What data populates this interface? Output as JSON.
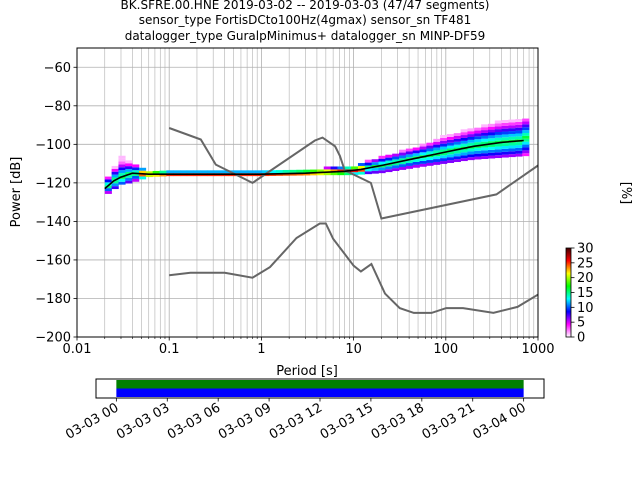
{
  "title": {
    "line1": "BK.SFRE.00.HNE   2019-03-02 -- 2019-03-03  (47/47 segments)",
    "line2": "sensor_type FortisDCto100Hz(4gmax) sensor_sn TF481",
    "line3": "datalogger_type GuralpMinimus+ datalogger_sn MINP-DF59"
  },
  "chart_data": [
    {
      "type": "heatmap",
      "xlabel": "Period [s]",
      "ylabel": "Power [dB]",
      "xscale": "log",
      "xlim": [
        0.01,
        1000
      ],
      "ylim": [
        -200,
        -50
      ],
      "x_ticks": [
        {
          "value": 0.01,
          "label": "0.01"
        },
        {
          "value": 0.1,
          "label": "0.1"
        },
        {
          "value": 1,
          "label": "1"
        },
        {
          "value": 10,
          "label": "10"
        },
        {
          "value": 100,
          "label": "100"
        },
        {
          "value": 1000,
          "label": "1000"
        }
      ],
      "y_ticks": [
        {
          "value": -60,
          "label": "−60"
        },
        {
          "value": -80,
          "label": "−80"
        },
        {
          "value": -100,
          "label": "−100"
        },
        {
          "value": -120,
          "label": "−120"
        },
        {
          "value": -140,
          "label": "−140"
        },
        {
          "value": -160,
          "label": "−160"
        },
        {
          "value": -180,
          "label": "−180"
        },
        {
          "value": -200,
          "label": "−200"
        }
      ],
      "grid": true,
      "colorbar": {
        "label": "[%]",
        "min": 0,
        "max": 30,
        "ticks": [
          {
            "value": 0,
            "label": "0"
          },
          {
            "value": 5,
            "label": "5"
          },
          {
            "value": 10,
            "label": "10"
          },
          {
            "value": 15,
            "label": "15"
          },
          {
            "value": 20,
            "label": "20"
          },
          {
            "value": 25,
            "label": "25"
          },
          {
            "value": 30,
            "label": "30"
          }
        ],
        "colors": [
          "#ffffff",
          "#ff00ff",
          "#0000ff",
          "#00ffff",
          "#00ff00",
          "#ffff00",
          "#ff0000",
          "#400000"
        ]
      },
      "mode_curve": [
        [
          0.02,
          -123
        ],
        [
          0.025,
          -119
        ],
        [
          0.03,
          -117
        ],
        [
          0.04,
          -115
        ],
        [
          0.06,
          -115.5
        ],
        [
          0.1,
          -115.5
        ],
        [
          0.3,
          -115.5
        ],
        [
          1,
          -115.5
        ],
        [
          3,
          -115
        ],
        [
          8,
          -114
        ],
        [
          12,
          -113
        ],
        [
          20,
          -111
        ],
        [
          50,
          -107
        ],
        [
          100,
          -104
        ],
        [
          200,
          -101
        ],
        [
          400,
          -99
        ],
        [
          700,
          -98
        ]
      ],
      "density_band": [
        {
          "period": 0.02,
          "low": -127,
          "high": -121
        },
        {
          "period": 0.03,
          "low": -121,
          "high": -107
        },
        {
          "period": 0.04,
          "low": -120,
          "high": -111
        },
        {
          "period": 0.06,
          "low": -117,
          "high": -114
        },
        {
          "period": 0.1,
          "low": -116.5,
          "high": -114.5
        },
        {
          "period": 1,
          "low": -116.5,
          "high": -114.5
        },
        {
          "period": 5,
          "low": -116,
          "high": -113
        },
        {
          "period": 10,
          "low": -116,
          "high": -112
        },
        {
          "period": 20,
          "low": -115,
          "high": -107
        },
        {
          "period": 50,
          "low": -112,
          "high": -102
        },
        {
          "period": 100,
          "low": -110,
          "high": -96
        },
        {
          "period": 200,
          "low": -108,
          "high": -92
        },
        {
          "period": 400,
          "low": -107,
          "high": -88
        },
        {
          "period": 800,
          "low": -106,
          "high": -87
        }
      ],
      "noise_models": [
        {
          "points": [
            [
              0.1,
              -91.5
            ],
            [
              0.22,
              -97.5
            ],
            [
              0.32,
              -110.5
            ],
            [
              0.8,
              -120
            ],
            [
              3.8,
              -98
            ],
            [
              4.6,
              -96.5
            ],
            [
              6.3,
              -101
            ],
            [
              7.1,
              -106
            ],
            [
              8,
              -113.5
            ],
            [
              15.4,
              -120
            ],
            [
              20,
              -138.5
            ],
            [
              354,
              -126
            ],
            [
              1000,
              -111
            ]
          ]
        },
        {
          "points": [
            [
              0.1,
              -168
            ],
            [
              0.17,
              -166.7
            ],
            [
              0.4,
              -166.7
            ],
            [
              0.8,
              -169.2
            ],
            [
              1.24,
              -163.7
            ],
            [
              2.4,
              -148.6
            ],
            [
              4.3,
              -141.1
            ],
            [
              5,
              -141.1
            ],
            [
              6,
              -149
            ],
            [
              10,
              -163
            ],
            [
              12,
              -166
            ],
            [
              15.6,
              -162.1
            ],
            [
              21.9,
              -177.5
            ],
            [
              31.6,
              -185
            ],
            [
              45,
              -187.5
            ],
            [
              70,
              -187.5
            ],
            [
              101,
              -185
            ],
            [
              154,
              -185
            ],
            [
              328,
              -187.5
            ],
            [
              600,
              -184.4
            ],
            [
              1000,
              -178
            ]
          ]
        }
      ]
    },
    {
      "type": "heatmap",
      "title": "",
      "x_ticks": [
        {
          "value": 0,
          "label": "03-03 00"
        },
        {
          "value": 3,
          "label": "03-03 03"
        },
        {
          "value": 6,
          "label": "03-03 06"
        },
        {
          "value": 9,
          "label": "03-03 09"
        },
        {
          "value": 12,
          "label": "03-03 12"
        },
        {
          "value": 15,
          "label": "03-03 15"
        },
        {
          "value": 18,
          "label": "03-03 18"
        },
        {
          "value": 21,
          "label": "03-03 21"
        },
        {
          "value": 24,
          "label": "03-04 00"
        }
      ],
      "xlim": [
        -1.2,
        25.2
      ],
      "rows": [
        {
          "start": 0,
          "end": 24,
          "color": "#008000"
        },
        {
          "start": 0,
          "end": 24,
          "color": "#0000ff"
        }
      ]
    }
  ]
}
